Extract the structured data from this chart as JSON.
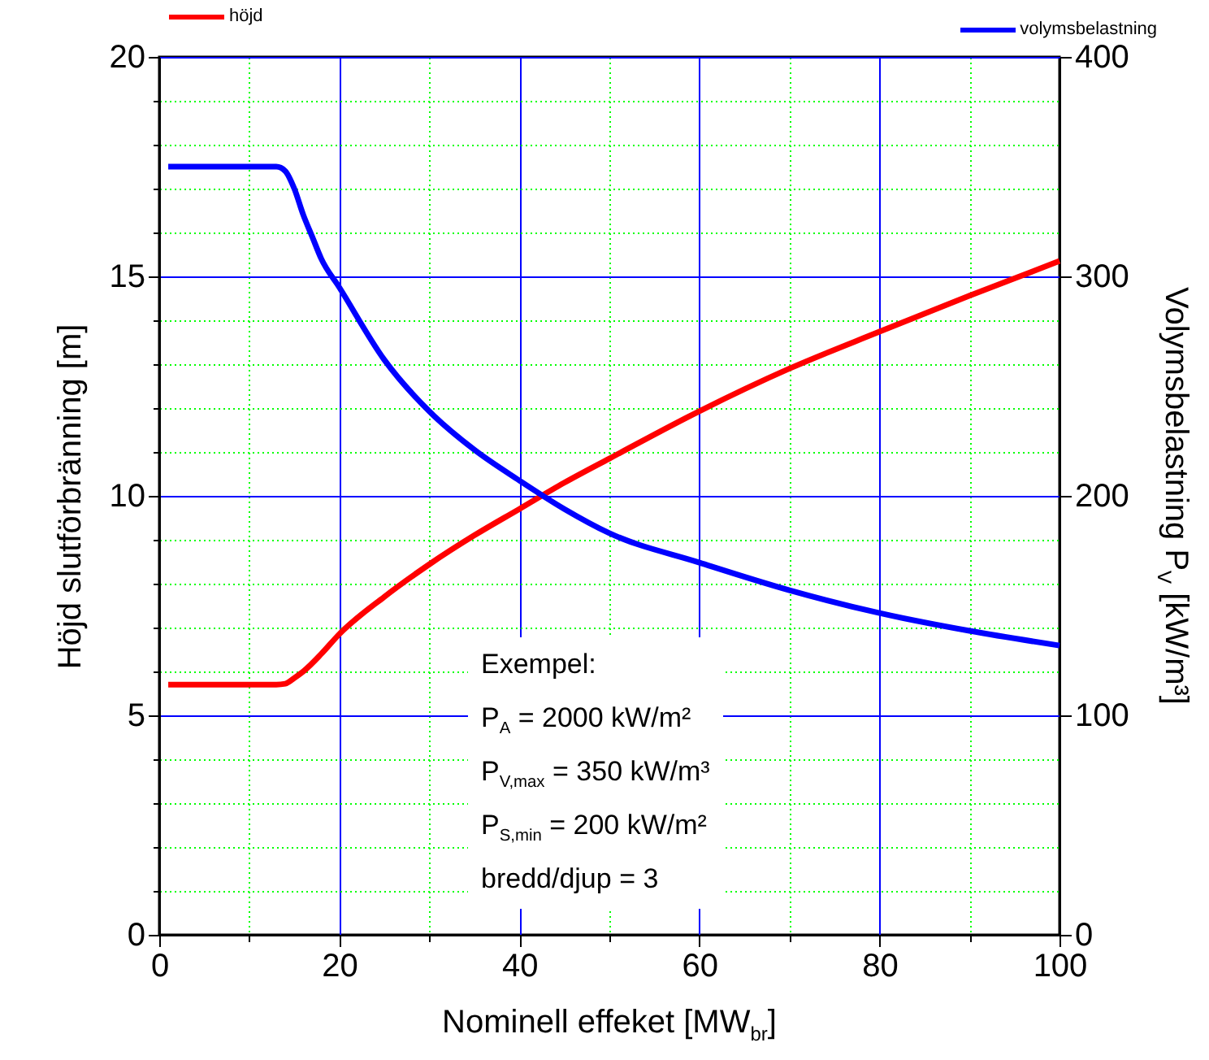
{
  "chart_data": {
    "type": "line",
    "xlabel": "Nominell effeket [MW$_{br}$]",
    "ylabel": "Höjd slutförbränning [m]",
    "y2label": "Volymsbelastning P$_{V}$ [kW/m³]",
    "xlim": [
      0,
      100
    ],
    "xticks": [
      0,
      {
        "value": 10,
        "label": null
      },
      20,
      {
        "value": 30,
        "label": null
      },
      40,
      {
        "value": 50,
        "label": null
      },
      60,
      {
        "value": 70,
        "label": null
      },
      80,
      {
        "value": 90,
        "label": null
      },
      100
    ],
    "ylim": [
      0,
      20
    ],
    "yticks": [
      0,
      {
        "value": 1,
        "label": null
      },
      {
        "value": 2,
        "label": null
      },
      {
        "value": 3,
        "label": null
      },
      {
        "value": 4,
        "label": null
      },
      5,
      {
        "value": 6,
        "label": null
      },
      {
        "value": 7,
        "label": null
      },
      {
        "value": 8,
        "label": null
      },
      {
        "value": 9,
        "label": null
      },
      10,
      {
        "value": 11,
        "label": null
      },
      {
        "value": 12,
        "label": null
      },
      {
        "value": 13,
        "label": null
      },
      {
        "value": 14,
        "label": null
      },
      15,
      {
        "value": 16,
        "label": null
      },
      {
        "value": 17,
        "label": null
      },
      {
        "value": 18,
        "label": null
      },
      {
        "value": 19,
        "label": null
      },
      20
    ],
    "y2lim": [
      0,
      400
    ],
    "y2ticks": [
      0,
      100,
      200,
      300,
      400
    ],
    "grid": true,
    "legend": "top",
    "line_style": "solid",
    "marker": "none",
    "annotations": [
      "Exempel:",
      "P$_{A}$ = 2000 kW/m²",
      "P$_{V,max}$ = 350 kW/m³",
      "P$_{S,min}$ = 200 kW/m²",
      "bredd/djup = 3"
    ],
    "series": [
      {
        "name": "höjd",
        "color": "#ff0000",
        "x": [
          1,
          13,
          14,
          15,
          16,
          18,
          20,
          25,
          30,
          35,
          40,
          45,
          50,
          60,
          70,
          80,
          90,
          100
        ],
        "values": [
          5.7,
          5.7,
          5.72,
          5.85,
          6.0,
          6.4,
          6.85,
          7.7,
          8.44,
          9.1,
          9.7,
          10.3,
          10.85,
          11.93,
          12.9,
          13.74,
          14.56,
          15.35
        ]
      },
      {
        "name": "volymsbelastning",
        "color": "#0000ff",
        "axis": "y2",
        "x": [
          1,
          13,
          14,
          15,
          16,
          17,
          18,
          20,
          25,
          30,
          35,
          40,
          45,
          50,
          60,
          70,
          80,
          90,
          100
        ],
        "values": [
          350,
          350,
          348,
          340,
          328,
          318,
          308,
          295,
          262,
          238.5,
          221,
          207,
          194,
          183,
          169.6,
          157,
          146.6,
          138.5,
          131.8
        ]
      }
    ]
  }
}
